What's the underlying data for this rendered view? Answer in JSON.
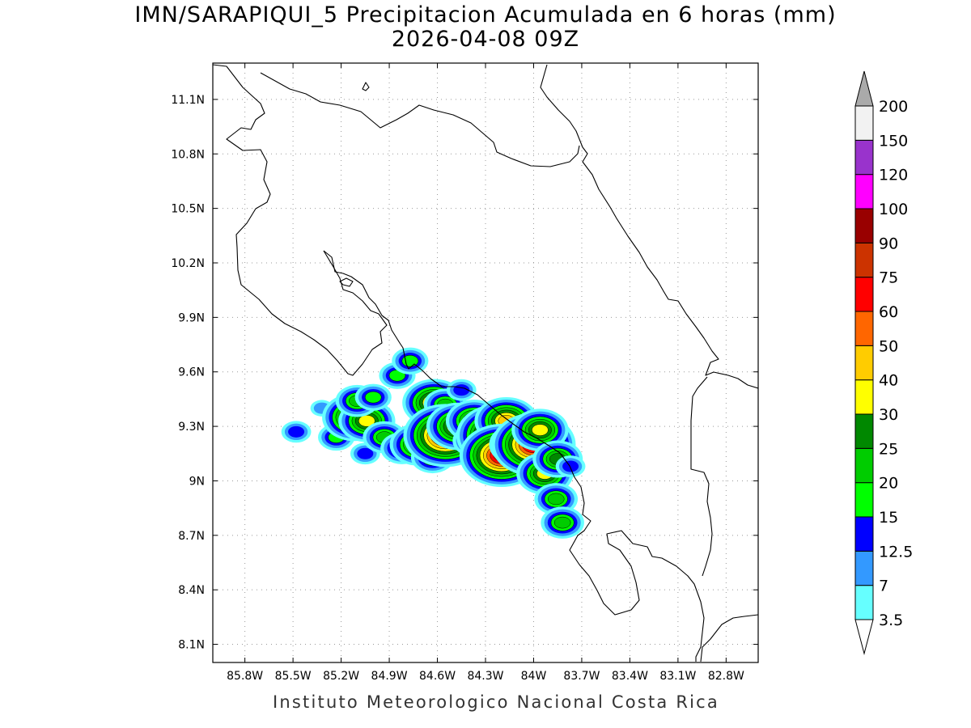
{
  "title": {
    "line1": "IMN/SARAPIQUI_5 Precipitacion Acumulada en 6 horas (mm)",
    "line2": "2026-04-08 09Z"
  },
  "credit": "Instituto Meteorologico Nacional Costa Rica",
  "map": {
    "lon_range": [
      -86.0,
      -82.6
    ],
    "lat_range": [
      8.0,
      11.3
    ],
    "lon_ticks": [
      "85.8W",
      "85.5W",
      "85.2W",
      "84.9W",
      "84.6W",
      "84.3W",
      "84W",
      "83.7W",
      "83.4W",
      "83.1W",
      "82.8W"
    ],
    "lon_values": [
      -85.8,
      -85.5,
      -85.2,
      -84.9,
      -84.6,
      -84.3,
      -84.0,
      -83.7,
      -83.4,
      -83.1,
      -82.8
    ],
    "lat_ticks": [
      "11.1N",
      "10.8N",
      "10.5N",
      "10.2N",
      "9.9N",
      "9.6N",
      "9.3N",
      "9N",
      "8.7N",
      "8.4N",
      "8.1N"
    ],
    "lat_values": [
      11.1,
      10.8,
      10.5,
      10.2,
      9.9,
      9.6,
      9.3,
      9.0,
      8.7,
      8.4,
      8.1
    ],
    "grid": true
  },
  "colorbar": {
    "labels": [
      "3.5",
      "7",
      "12.5",
      "15",
      "20",
      "25",
      "30",
      "40",
      "50",
      "60",
      "75",
      "90",
      "100",
      "120",
      "150",
      "200"
    ],
    "colors": [
      "#66ffff",
      "#3399ff",
      "#0000ff",
      "#00ff00",
      "#00cc00",
      "#008800",
      "#ffff00",
      "#ffcc00",
      "#ff6600",
      "#ff0000",
      "#cc3300",
      "#990000",
      "#ff00ff",
      "#9933cc",
      "#f2f2f2",
      "#aaaaaa"
    ]
  },
  "precip_cells": [
    {
      "lon": -85.48,
      "lat": 9.27,
      "level": 2
    },
    {
      "lon": -85.32,
      "lat": 9.4,
      "level": 1
    },
    {
      "lon": -85.23,
      "lat": 9.24,
      "level": 3
    },
    {
      "lon": -85.12,
      "lat": 9.35,
      "level": 7
    },
    {
      "lon": -85.04,
      "lat": 9.33,
      "level": 6
    },
    {
      "lon": -85.1,
      "lat": 9.44,
      "level": 4
    },
    {
      "lon": -85.0,
      "lat": 9.46,
      "level": 3
    },
    {
      "lon": -85.05,
      "lat": 9.15,
      "level": 2
    },
    {
      "lon": -84.93,
      "lat": 9.24,
      "level": 4
    },
    {
      "lon": -84.85,
      "lat": 9.58,
      "level": 3
    },
    {
      "lon": -84.77,
      "lat": 9.66,
      "level": 3
    },
    {
      "lon": -84.62,
      "lat": 9.43,
      "level": 7
    },
    {
      "lon": -84.55,
      "lat": 9.42,
      "level": 4
    },
    {
      "lon": -84.82,
      "lat": 9.18,
      "level": 4
    },
    {
      "lon": -84.72,
      "lat": 9.2,
      "level": 6
    },
    {
      "lon": -84.63,
      "lat": 9.13,
      "level": 4
    },
    {
      "lon": -84.55,
      "lat": 9.25,
      "level": 10
    },
    {
      "lon": -84.47,
      "lat": 9.3,
      "level": 7
    },
    {
      "lon": -84.45,
      "lat": 9.5,
      "level": 2
    },
    {
      "lon": -84.37,
      "lat": 9.33,
      "level": 6
    },
    {
      "lon": -84.37,
      "lat": 9.22,
      "level": 4
    },
    {
      "lon": -84.22,
      "lat": 9.25,
      "level": 10
    },
    {
      "lon": -84.17,
      "lat": 9.33,
      "level": 7
    },
    {
      "lon": -84.2,
      "lat": 9.14,
      "level": 10
    },
    {
      "lon": -84.1,
      "lat": 9.2,
      "level": 6
    },
    {
      "lon": -84.0,
      "lat": 9.2,
      "level": 10
    },
    {
      "lon": -83.96,
      "lat": 9.28,
      "level": 6
    },
    {
      "lon": -83.93,
      "lat": 9.04,
      "level": 6
    },
    {
      "lon": -83.85,
      "lat": 9.12,
      "level": 5
    },
    {
      "lon": -83.86,
      "lat": 8.9,
      "level": 4
    },
    {
      "lon": -83.82,
      "lat": 8.77,
      "level": 4
    },
    {
      "lon": -83.77,
      "lat": 9.08,
      "level": 2
    }
  ]
}
